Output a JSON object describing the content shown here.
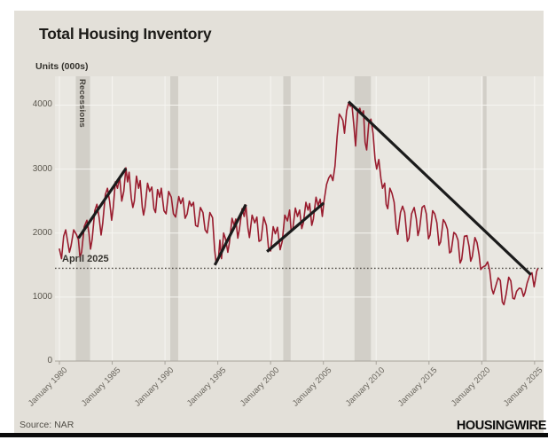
{
  "page": {
    "title": "Total Housing Inventory",
    "units_label": "Units (000s)",
    "source": "Source: NAR",
    "brand": "HOUSINGWIRE"
  },
  "annotations": {
    "recessions_label": "Recessions",
    "reference_line_label": "April 2025"
  },
  "colors": {
    "card_bg": "#e3e0d9",
    "plot_bg": "#e9e7e1",
    "gridline": "#f6f5f1",
    "recession_band": "#d2cfc8",
    "series_red": "#991c2e",
    "trendline_black": "#1b1b1b",
    "dotted_line": "#4e4a44",
    "axis": "#a8a49c"
  },
  "chart_data": {
    "type": "line",
    "title": "Total Housing Inventory",
    "ylabel": "Units (000s)",
    "legend": "none",
    "grid": "on",
    "xlim": [
      1980,
      2025.6
    ],
    "ylim": [
      0,
      4450
    ],
    "y_ticks": [
      0,
      1000,
      2000,
      3000,
      4000
    ],
    "x_tick_years": [
      1980,
      1985,
      1990,
      1995,
      2000,
      2005,
      2010,
      2015,
      2020,
      2025
    ],
    "x_tick_labels": [
      "January 1980",
      "January 1985",
      "January 1990",
      "January 1995",
      "January 2000",
      "January 2005",
      "January 2010",
      "January 2015",
      "January 2020",
      "January 2025"
    ],
    "recession_bands": [
      [
        1981.55,
        1982.9
      ],
      [
        1990.5,
        1991.25
      ],
      [
        2001.2,
        2001.9
      ],
      [
        2007.95,
        2009.5
      ],
      [
        2020.1,
        2020.45
      ]
    ],
    "reference_line": {
      "label": "April 2025",
      "value": 1450
    },
    "trendlines": [
      [
        [
          1981.8,
          1920
        ],
        [
          1986.3,
          3010
        ]
      ],
      [
        [
          1994.72,
          1500
        ],
        [
          1997.65,
          2445
        ]
      ],
      [
        [
          1999.66,
          1710
        ],
        [
          2005.03,
          2470
        ]
      ],
      [
        [
          2007.38,
          4055
        ],
        [
          2024.65,
          1350
        ]
      ]
    ],
    "series": [
      {
        "name": "Total housing inventory (000s)",
        "color": "#991c2e",
        "points": [
          [
            1980.0,
            1750
          ],
          [
            1980.2,
            1600
          ],
          [
            1980.4,
            1950
          ],
          [
            1980.6,
            2050
          ],
          [
            1980.8,
            1850
          ],
          [
            1980.95,
            1700
          ],
          [
            1981.1,
            1800
          ],
          [
            1981.35,
            2050
          ],
          [
            1981.6,
            1980
          ],
          [
            1981.8,
            1900
          ],
          [
            1981.95,
            1620
          ],
          [
            1982.1,
            1700
          ],
          [
            1982.35,
            2100
          ],
          [
            1982.6,
            2200
          ],
          [
            1982.8,
            2000
          ],
          [
            1982.95,
            1750
          ],
          [
            1983.1,
            1900
          ],
          [
            1983.35,
            2350
          ],
          [
            1983.55,
            2450
          ],
          [
            1983.75,
            2250
          ],
          [
            1983.95,
            1970
          ],
          [
            1984.1,
            2150
          ],
          [
            1984.35,
            2600
          ],
          [
            1984.55,
            2700
          ],
          [
            1984.75,
            2500
          ],
          [
            1984.95,
            2200
          ],
          [
            1985.1,
            2400
          ],
          [
            1985.3,
            2800
          ],
          [
            1985.5,
            2700
          ],
          [
            1985.7,
            2880
          ],
          [
            1985.9,
            2500
          ],
          [
            1986.1,
            2650
          ],
          [
            1986.3,
            3020
          ],
          [
            1986.45,
            2800
          ],
          [
            1986.6,
            2950
          ],
          [
            1986.8,
            2550
          ],
          [
            1986.95,
            2400
          ],
          [
            1987.1,
            2500
          ],
          [
            1987.3,
            2890
          ],
          [
            1987.5,
            2700
          ],
          [
            1987.65,
            2820
          ],
          [
            1987.85,
            2400
          ],
          [
            1987.97,
            2280
          ],
          [
            1988.1,
            2400
          ],
          [
            1988.35,
            2780
          ],
          [
            1988.55,
            2650
          ],
          [
            1988.75,
            2720
          ],
          [
            1988.95,
            2380
          ],
          [
            1989.1,
            2320
          ],
          [
            1989.3,
            2680
          ],
          [
            1989.5,
            2560
          ],
          [
            1989.65,
            2700
          ],
          [
            1989.9,
            2350
          ],
          [
            1990.1,
            2300
          ],
          [
            1990.35,
            2650
          ],
          [
            1990.6,
            2560
          ],
          [
            1990.8,
            2300
          ],
          [
            1991.0,
            2250
          ],
          [
            1991.3,
            2570
          ],
          [
            1991.5,
            2460
          ],
          [
            1991.7,
            2550
          ],
          [
            1991.9,
            2230
          ],
          [
            1992.1,
            2300
          ],
          [
            1992.3,
            2500
          ],
          [
            1992.5,
            2420
          ],
          [
            1992.7,
            2480
          ],
          [
            1992.9,
            2120
          ],
          [
            1993.1,
            2100
          ],
          [
            1993.35,
            2400
          ],
          [
            1993.6,
            2320
          ],
          [
            1993.8,
            2050
          ],
          [
            1994.0,
            2000
          ],
          [
            1994.25,
            2320
          ],
          [
            1994.5,
            2240
          ],
          [
            1994.7,
            1750
          ],
          [
            1994.85,
            1520
          ],
          [
            1995.05,
            1580
          ],
          [
            1995.2,
            1890
          ],
          [
            1995.35,
            1600
          ],
          [
            1995.55,
            2000
          ],
          [
            1995.75,
            1900
          ],
          [
            1995.95,
            1700
          ],
          [
            1996.1,
            1850
          ],
          [
            1996.35,
            2230
          ],
          [
            1996.55,
            2120
          ],
          [
            1996.7,
            2220
          ],
          [
            1996.9,
            1920
          ],
          [
            1997.05,
            2060
          ],
          [
            1997.3,
            2380
          ],
          [
            1997.5,
            2260
          ],
          [
            1997.65,
            2440
          ],
          [
            1997.85,
            2080
          ],
          [
            1998.0,
            1930
          ],
          [
            1998.25,
            2280
          ],
          [
            1998.5,
            2160
          ],
          [
            1998.7,
            2250
          ],
          [
            1998.9,
            1870
          ],
          [
            1999.1,
            1890
          ],
          [
            1999.35,
            2250
          ],
          [
            1999.6,
            2120
          ],
          [
            1999.8,
            1770
          ],
          [
            2000.0,
            1720
          ],
          [
            2000.25,
            2100
          ],
          [
            2000.45,
            1990
          ],
          [
            2000.65,
            2090
          ],
          [
            2000.9,
            1740
          ],
          [
            2001.1,
            1870
          ],
          [
            2001.35,
            2280
          ],
          [
            2001.6,
            2190
          ],
          [
            2001.8,
            2360
          ],
          [
            2001.95,
            2020
          ],
          [
            2002.1,
            2070
          ],
          [
            2002.35,
            2390
          ],
          [
            2002.55,
            2260
          ],
          [
            2002.75,
            2360
          ],
          [
            2002.95,
            2070
          ],
          [
            2003.1,
            2160
          ],
          [
            2003.35,
            2480
          ],
          [
            2003.55,
            2360
          ],
          [
            2003.7,
            2460
          ],
          [
            2003.9,
            2120
          ],
          [
            2004.05,
            2220
          ],
          [
            2004.3,
            2560
          ],
          [
            2004.5,
            2430
          ],
          [
            2004.7,
            2530
          ],
          [
            2004.9,
            2260
          ],
          [
            2005.05,
            2490
          ],
          [
            2005.3,
            2760
          ],
          [
            2005.5,
            2860
          ],
          [
            2005.7,
            2910
          ],
          [
            2005.9,
            2820
          ],
          [
            2006.1,
            3050
          ],
          [
            2006.3,
            3510
          ],
          [
            2006.5,
            3860
          ],
          [
            2006.7,
            3810
          ],
          [
            2006.85,
            3760
          ],
          [
            2007.0,
            3560
          ],
          [
            2007.2,
            3910
          ],
          [
            2007.4,
            4040
          ],
          [
            2007.55,
            3980
          ],
          [
            2007.7,
            4020
          ],
          [
            2007.9,
            3660
          ],
          [
            2008.05,
            3360
          ],
          [
            2008.25,
            3900
          ],
          [
            2008.45,
            3950
          ],
          [
            2008.6,
            3850
          ],
          [
            2008.8,
            3910
          ],
          [
            2008.95,
            3420
          ],
          [
            2009.1,
            3300
          ],
          [
            2009.3,
            3720
          ],
          [
            2009.5,
            3780
          ],
          [
            2009.7,
            3560
          ],
          [
            2009.9,
            3150
          ],
          [
            2010.05,
            3000
          ],
          [
            2010.25,
            3150
          ],
          [
            2010.45,
            2850
          ],
          [
            2010.6,
            2700
          ],
          [
            2010.8,
            2780
          ],
          [
            2010.95,
            2450
          ],
          [
            2011.1,
            2380
          ],
          [
            2011.3,
            2700
          ],
          [
            2011.5,
            2620
          ],
          [
            2011.7,
            2480
          ],
          [
            2011.9,
            2080
          ],
          [
            2012.05,
            1980
          ],
          [
            2012.3,
            2320
          ],
          [
            2012.5,
            2420
          ],
          [
            2012.7,
            2320
          ],
          [
            2012.95,
            1870
          ],
          [
            2013.1,
            1920
          ],
          [
            2013.35,
            2300
          ],
          [
            2013.6,
            2400
          ],
          [
            2013.8,
            2220
          ],
          [
            2013.95,
            1960
          ],
          [
            2014.1,
            2060
          ],
          [
            2014.35,
            2400
          ],
          [
            2014.55,
            2430
          ],
          [
            2014.75,
            2300
          ],
          [
            2014.95,
            1910
          ],
          [
            2015.1,
            1970
          ],
          [
            2015.35,
            2350
          ],
          [
            2015.55,
            2300
          ],
          [
            2015.75,
            2160
          ],
          [
            2015.95,
            1810
          ],
          [
            2016.1,
            1860
          ],
          [
            2016.35,
            2210
          ],
          [
            2016.55,
            2160
          ],
          [
            2016.75,
            2060
          ],
          [
            2016.95,
            1690
          ],
          [
            2017.1,
            1710
          ],
          [
            2017.35,
            2010
          ],
          [
            2017.55,
            1980
          ],
          [
            2017.75,
            1890
          ],
          [
            2017.95,
            1530
          ],
          [
            2018.1,
            1590
          ],
          [
            2018.35,
            1950
          ],
          [
            2018.6,
            1960
          ],
          [
            2018.8,
            1790
          ],
          [
            2018.95,
            1560
          ],
          [
            2019.1,
            1630
          ],
          [
            2019.35,
            1930
          ],
          [
            2019.55,
            1850
          ],
          [
            2019.75,
            1660
          ],
          [
            2019.9,
            1430
          ],
          [
            2020.1,
            1470
          ],
          [
            2020.35,
            1490
          ],
          [
            2020.55,
            1550
          ],
          [
            2020.75,
            1420
          ],
          [
            2020.95,
            1130
          ],
          [
            2021.1,
            1050
          ],
          [
            2021.3,
            1160
          ],
          [
            2021.55,
            1300
          ],
          [
            2021.75,
            1260
          ],
          [
            2021.95,
            920
          ],
          [
            2022.1,
            880
          ],
          [
            2022.3,
            1040
          ],
          [
            2022.55,
            1310
          ],
          [
            2022.75,
            1250
          ],
          [
            2022.95,
            980
          ],
          [
            2023.1,
            970
          ],
          [
            2023.3,
            1090
          ],
          [
            2023.55,
            1140
          ],
          [
            2023.75,
            1130
          ],
          [
            2023.95,
            1010
          ],
          [
            2024.1,
            1070
          ],
          [
            2024.3,
            1220
          ],
          [
            2024.55,
            1340
          ],
          [
            2024.75,
            1380
          ],
          [
            2024.95,
            1160
          ],
          [
            2025.05,
            1250
          ],
          [
            2025.2,
            1400
          ],
          [
            2025.3,
            1440
          ]
        ]
      }
    ]
  }
}
